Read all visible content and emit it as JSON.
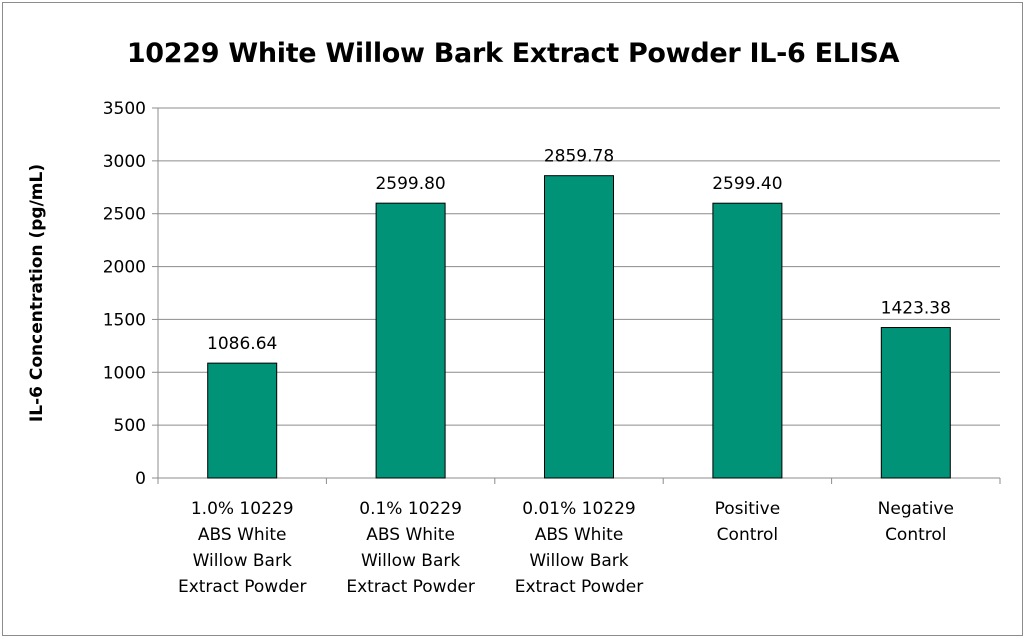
{
  "chart_data": {
    "type": "bar",
    "title": "10229 White Willow Bark Extract Powder IL-6 ELISA",
    "ylabel": "IL-6 Concentration (pg/mL)",
    "xlabel": "",
    "ylim": [
      0,
      3500
    ],
    "yticks": [
      0,
      500,
      1000,
      1500,
      2000,
      2500,
      3000,
      3500
    ],
    "grid": true,
    "legend": "none",
    "categories": [
      [
        "1.0% 10229",
        "ABS White",
        "Willow Bark",
        "Extract Powder"
      ],
      [
        "0.1% 10229",
        "ABS White",
        "Willow Bark",
        "Extract Powder"
      ],
      [
        "0.01% 10229",
        "ABS White",
        "Willow Bark",
        "Extract Powder"
      ],
      [
        "Positive",
        "Control"
      ],
      [
        "Negative",
        "Control"
      ]
    ],
    "values": [
      1086.64,
      2599.8,
      2859.78,
      2599.4,
      1423.38
    ],
    "data_labels": [
      "1086.64",
      "2599.80",
      "2859.78",
      "2599.40",
      "1423.38"
    ],
    "bar_color": "#009378",
    "bar_edge_color": "#000000",
    "grid_color": "#8c8c8c"
  }
}
